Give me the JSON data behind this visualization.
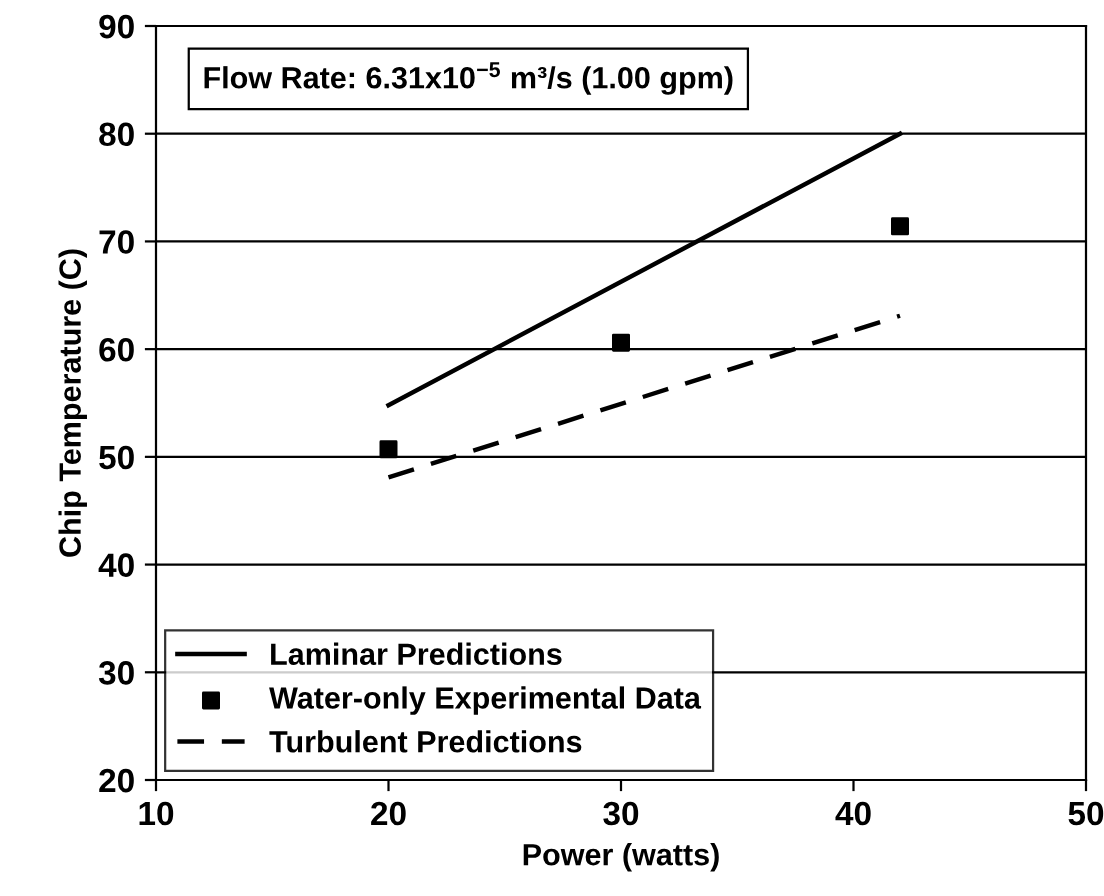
{
  "chart_data": {
    "type": "line",
    "xlabel": "Power (watts)",
    "ylabel": "Chip Temperature (C)",
    "annotations": [
      "Flow Rate: 6.31x10$^{−5}$ m³/s (1.00 gpm)"
    ],
    "series": [
      {
        "name": "Laminar Predictions",
        "line_style": "solid",
        "color": "#000000",
        "x": [
          20,
          42
        ],
        "values": [
          54.8,
          80
        ]
      },
      {
        "name": "Water-only Experimental Data",
        "type": "scatter",
        "marker": "square",
        "color": "#000000",
        "x": [
          20,
          30,
          42
        ],
        "values": [
          50.7,
          60.6,
          71.4
        ]
      },
      {
        "name": "Turbulent Predictions",
        "line_style": "dashed",
        "color": "#000000",
        "x": [
          20,
          42
        ],
        "values": [
          48.1,
          63.1
        ]
      }
    ],
    "xlim": [
      10,
      50
    ],
    "xticks": [
      10,
      20,
      30,
      40,
      50
    ],
    "ylim": [
      20,
      90
    ],
    "yticks": [
      20,
      30,
      40,
      50,
      60,
      70,
      80,
      90
    ],
    "grid": "y",
    "legend": "bottom left"
  }
}
